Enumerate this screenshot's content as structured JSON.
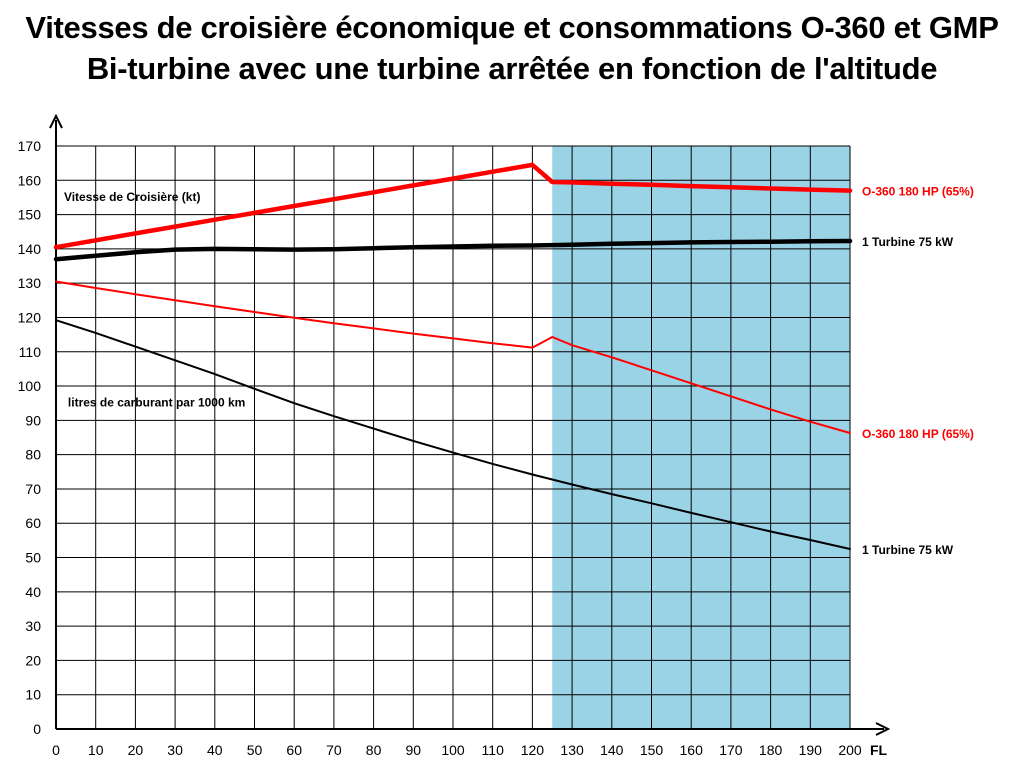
{
  "chart_data": {
    "type": "line",
    "title": "Vitesses de croisière économique et consommations O-360 et GMP",
    "subtitle": "Bi-turbine avec une turbine arrêtée en fonction de l'altitude",
    "xlabel": "FL",
    "ylabel": "",
    "xlim": [
      0,
      200
    ],
    "ylim": [
      0,
      170
    ],
    "x_ticks": [
      0,
      10,
      20,
      30,
      40,
      50,
      60,
      70,
      80,
      90,
      100,
      110,
      120,
      130,
      140,
      150,
      160,
      170,
      180,
      190,
      200
    ],
    "y_ticks": [
      0,
      10,
      20,
      30,
      40,
      50,
      60,
      70,
      80,
      90,
      100,
      110,
      120,
      130,
      140,
      150,
      160,
      170
    ],
    "grid": true,
    "shaded_region": {
      "x_from": 125,
      "x_to": 200,
      "color": "#9bd3e6"
    },
    "annotations": [
      {
        "text": "Vitesse de Croisière (kt)",
        "x": 2,
        "y": 154
      },
      {
        "text": "litres de carburant par 1000 km",
        "x": 3,
        "y": 94
      }
    ],
    "series": [
      {
        "name": "O-360 180 HP (65%)",
        "group": "vitesse",
        "color": "#ff0000",
        "width": 4.5,
        "x": [
          0,
          10,
          20,
          30,
          40,
          50,
          60,
          70,
          80,
          90,
          100,
          110,
          120,
          125,
          130,
          140,
          150,
          160,
          170,
          180,
          190,
          200
        ],
        "y": [
          140.5,
          142.5,
          144.5,
          146.5,
          148.5,
          150.5,
          152.5,
          154.5,
          156.5,
          158.5,
          160.5,
          162.5,
          164.5,
          159.5,
          159.4,
          159.0,
          158.7,
          158.3,
          158.0,
          157.6,
          157.3,
          157.0
        ]
      },
      {
        "name": "1 Turbine 75 kW",
        "group": "vitesse",
        "color": "#000000",
        "width": 4.5,
        "x": [
          0,
          10,
          20,
          30,
          40,
          50,
          60,
          70,
          80,
          90,
          100,
          110,
          120,
          130,
          140,
          150,
          160,
          170,
          180,
          190,
          200
        ],
        "y": [
          137.0,
          138.0,
          139.0,
          139.8,
          140.0,
          139.9,
          139.8,
          139.9,
          140.2,
          140.5,
          140.7,
          140.9,
          141.0,
          141.2,
          141.5,
          141.7,
          141.9,
          142.0,
          142.1,
          142.2,
          142.3
        ]
      },
      {
        "name": "O-360 180 HP (65%)",
        "group": "consommation",
        "color": "#ff0000",
        "width": 2,
        "x": [
          0,
          10,
          20,
          30,
          40,
          50,
          60,
          70,
          80,
          90,
          100,
          110,
          120,
          125,
          130,
          140,
          150,
          160,
          170,
          180,
          190,
          200
        ],
        "y": [
          130.5,
          128.6,
          126.8,
          125.0,
          123.3,
          121.6,
          119.9,
          118.3,
          116.8,
          115.3,
          113.9,
          112.5,
          111.2,
          114.3,
          111.9,
          108.4,
          104.6,
          100.8,
          97.0,
          93.2,
          89.6,
          86.3
        ]
      },
      {
        "name": "1 Turbine 75 kW",
        "group": "consommation",
        "color": "#000000",
        "width": 2,
        "x": [
          0,
          10,
          20,
          30,
          40,
          50,
          60,
          70,
          80,
          90,
          100,
          110,
          120,
          130,
          140,
          150,
          160,
          170,
          180,
          190,
          200
        ],
        "y": [
          119.2,
          115.5,
          111.5,
          107.5,
          103.5,
          99.2,
          95.0,
          91.2,
          87.6,
          84.0,
          80.6,
          77.3,
          74.2,
          71.3,
          68.5,
          65.8,
          63.0,
          60.3,
          57.6,
          55.1,
          52.5
        ]
      }
    ]
  }
}
